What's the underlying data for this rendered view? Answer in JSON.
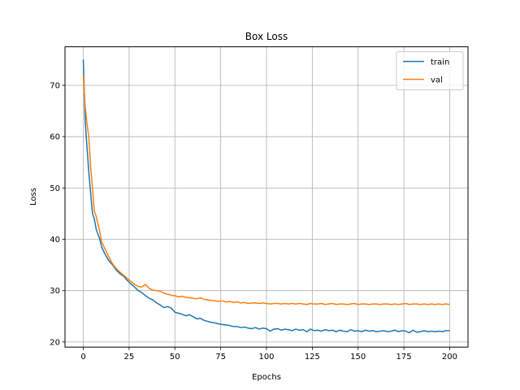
{
  "chart_data": {
    "type": "line",
    "title": "Box Loss",
    "xlabel": "Epochs",
    "ylabel": "Loss",
    "xlim": [
      -10,
      210
    ],
    "ylim": [
      19,
      77.5
    ],
    "xticks": [
      0,
      25,
      50,
      75,
      100,
      125,
      150,
      175,
      200
    ],
    "yticks": [
      20,
      30,
      40,
      50,
      60,
      70
    ],
    "grid": true,
    "legend_position": "top-right",
    "series": [
      {
        "name": "train",
        "color": "#1f77b4",
        "x": [
          0,
          1,
          2,
          3,
          4,
          5,
          6,
          7,
          8,
          9,
          10,
          12,
          14,
          16,
          18,
          20,
          22,
          24,
          26,
          28,
          30,
          32,
          34,
          36,
          38,
          40,
          42,
          44,
          46,
          48,
          50,
          52,
          54,
          56,
          58,
          60,
          62,
          64,
          66,
          68,
          70,
          72,
          74,
          76,
          78,
          80,
          82,
          84,
          86,
          88,
          90,
          92,
          94,
          96,
          98,
          100,
          102,
          104,
          106,
          108,
          110,
          112,
          114,
          116,
          118,
          120,
          122,
          124,
          126,
          128,
          130,
          132,
          134,
          136,
          138,
          140,
          142,
          144,
          146,
          148,
          150,
          152,
          154,
          156,
          158,
          160,
          162,
          164,
          166,
          168,
          170,
          172,
          174,
          176,
          178,
          180,
          182,
          184,
          186,
          188,
          190,
          192,
          194,
          196,
          198,
          200
        ],
        "y": [
          75.0,
          63.0,
          58.0,
          53.0,
          49.0,
          45.0,
          44.0,
          42.0,
          41.0,
          40.0,
          38.5,
          37.0,
          35.8,
          35.0,
          34.0,
          33.3,
          32.8,
          32.0,
          31.3,
          30.7,
          30.0,
          29.6,
          29.0,
          28.5,
          28.2,
          27.6,
          27.2,
          26.7,
          26.9,
          26.6,
          25.8,
          25.6,
          25.4,
          25.1,
          25.3,
          24.9,
          24.5,
          24.6,
          24.2,
          24.0,
          23.8,
          23.7,
          23.5,
          23.4,
          23.3,
          23.2,
          23.0,
          23.0,
          22.8,
          22.9,
          22.7,
          22.6,
          22.8,
          22.5,
          22.7,
          22.6,
          22.1,
          22.5,
          22.6,
          22.3,
          22.5,
          22.4,
          22.2,
          22.5,
          22.3,
          22.4,
          22.0,
          22.5,
          22.2,
          22.3,
          22.1,
          22.4,
          22.2,
          22.3,
          22.0,
          22.3,
          22.1,
          22.0,
          22.4,
          22.1,
          22.2,
          22.0,
          22.3,
          22.1,
          22.2,
          22.0,
          22.1,
          22.2,
          22.0,
          22.1,
          22.3,
          22.0,
          22.2,
          22.1,
          21.8,
          22.3,
          21.9,
          22.0,
          22.2,
          22.0,
          22.1,
          22.0,
          22.1,
          22.0,
          22.2,
          22.2
        ]
      },
      {
        "name": "val",
        "color": "#ff7f0e",
        "x": [
          0,
          1,
          2,
          3,
          4,
          5,
          6,
          7,
          8,
          9,
          10,
          12,
          14,
          16,
          18,
          20,
          22,
          24,
          26,
          28,
          30,
          32,
          34,
          36,
          38,
          40,
          42,
          44,
          46,
          48,
          50,
          52,
          54,
          56,
          58,
          60,
          62,
          64,
          66,
          68,
          70,
          72,
          74,
          76,
          78,
          80,
          82,
          84,
          86,
          88,
          90,
          92,
          94,
          96,
          98,
          100,
          102,
          104,
          106,
          108,
          110,
          112,
          114,
          116,
          118,
          120,
          122,
          124,
          126,
          128,
          130,
          132,
          134,
          136,
          138,
          140,
          142,
          144,
          146,
          148,
          150,
          152,
          154,
          156,
          158,
          160,
          162,
          164,
          166,
          168,
          170,
          172,
          174,
          176,
          178,
          180,
          182,
          184,
          186,
          188,
          190,
          192,
          194,
          196,
          198,
          200
        ],
        "y": [
          72.0,
          66.0,
          62.5,
          60.0,
          54.0,
          50.0,
          45.5,
          44.5,
          43.0,
          41.5,
          39.5,
          38.0,
          36.5,
          35.2,
          34.3,
          33.6,
          33.0,
          32.4,
          31.8,
          31.2,
          30.8,
          30.7,
          31.2,
          30.4,
          30.1,
          30.0,
          29.9,
          29.5,
          29.3,
          29.1,
          29.0,
          28.8,
          28.9,
          28.7,
          28.6,
          28.5,
          28.4,
          28.6,
          28.3,
          28.2,
          28.1,
          28.0,
          27.9,
          28.0,
          27.8,
          27.9,
          27.7,
          27.8,
          27.6,
          27.7,
          27.5,
          27.6,
          27.6,
          27.5,
          27.6,
          27.5,
          27.4,
          27.5,
          27.5,
          27.4,
          27.5,
          27.4,
          27.5,
          27.4,
          27.5,
          27.4,
          27.3,
          27.5,
          27.4,
          27.4,
          27.5,
          27.3,
          27.4,
          27.5,
          27.3,
          27.4,
          27.4,
          27.3,
          27.4,
          27.5,
          27.3,
          27.4,
          27.4,
          27.3,
          27.4,
          27.4,
          27.3,
          27.4,
          27.4,
          27.3,
          27.4,
          27.3,
          27.4,
          27.5,
          27.3,
          27.4,
          27.4,
          27.3,
          27.4,
          27.3,
          27.4,
          27.3,
          27.4,
          27.3,
          27.4,
          27.3
        ]
      }
    ]
  }
}
